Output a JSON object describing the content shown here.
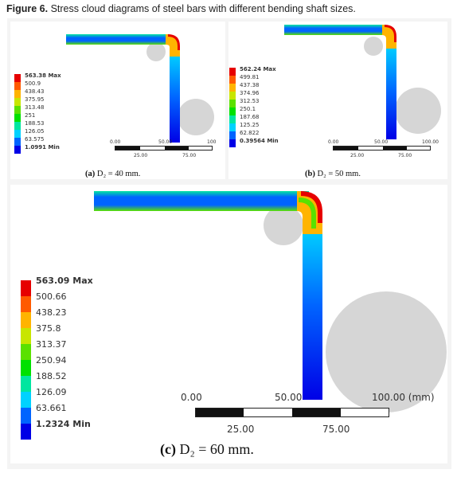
{
  "figure": {
    "label": "Figure 6.",
    "caption": "Stress cloud diagrams of steel bars with different bending shaft sizes."
  },
  "colors": [
    "#e60000",
    "#ff5a00",
    "#ffb400",
    "#c8e600",
    "#5ae100",
    "#00e100",
    "#00e6a0",
    "#00d2ff",
    "#0064ff",
    "#0000e6"
  ],
  "panels": [
    {
      "id": "a",
      "caption_label": "(a)",
      "caption_text": "D₂ = 40 mm.",
      "legend": [
        "563.38 Max",
        "500.9",
        "438.43",
        "375.95",
        "313.48",
        "251",
        "188.53",
        "126.05",
        "63.575",
        "1.0991 Min"
      ],
      "scale_top": [
        "0.00",
        "50.00",
        "100"
      ],
      "scale_bottom": [
        "25.00",
        "75.00"
      ]
    },
    {
      "id": "b",
      "caption_label": "(b)",
      "caption_text": "D₂ = 50 mm.",
      "legend": [
        "562.24 Max",
        "499.81",
        "437.38",
        "374.96",
        "312.53",
        "250.1",
        "187.68",
        "125.25",
        "62.822",
        "0.39564 Min"
      ],
      "scale_top": [
        "0.00",
        "50.00",
        "100.00"
      ],
      "scale_bottom": [
        "25.00",
        "75.00"
      ]
    },
    {
      "id": "c",
      "caption_label": "(c)",
      "caption_text": "D₂ = 60 mm.",
      "legend": [
        "563.09 Max",
        "500.66",
        "438.23",
        "375.8",
        "313.37",
        "250.94",
        "188.52",
        "126.09",
        "63.661",
        "1.2324 Min"
      ],
      "scale_top": [
        "0.00",
        "50.00",
        "100.00 (mm)"
      ],
      "scale_bottom": [
        "25.00",
        "75.00"
      ]
    }
  ]
}
